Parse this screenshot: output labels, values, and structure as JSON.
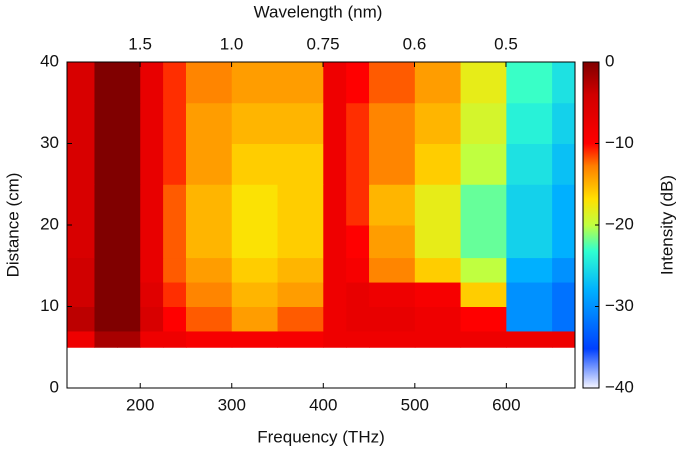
{
  "chart_data": {
    "type": "heatmap",
    "xlabel": "Frequency (THz)",
    "ylabel": "Distance (cm)",
    "x2label": "Wavelength (nm)",
    "colorbar_label": "Intensity (dB)",
    "colormap": "jet",
    "xlim": [
      120,
      675
    ],
    "ylim": [
      0,
      40
    ],
    "xticks": [
      200,
      300,
      400,
      500,
      600
    ],
    "yticks": [
      0,
      10,
      20,
      30,
      40
    ],
    "x2ticks": [
      1.5,
      {
        "value": 1.0,
        "label": "1.0"
      },
      0.75,
      0.6,
      0.5
    ],
    "clim": [
      -40,
      0
    ],
    "cticks": [
      {
        "value": 0,
        "label": "0"
      },
      {
        "value": -10,
        "label": "−10"
      },
      {
        "value": -20,
        "label": "−20"
      },
      {
        "value": -30,
        "label": "−30"
      },
      {
        "value": -40,
        "label": "−40"
      }
    ],
    "x_bins": [
      120,
      150,
      175,
      200,
      225,
      250,
      300,
      350,
      400,
      425,
      450,
      500,
      550,
      600,
      650,
      675
    ],
    "y_bins": [
      0,
      5,
      7,
      10,
      13,
      16,
      20,
      25,
      30,
      35,
      40
    ],
    "z": [
      [
        null,
        null,
        null,
        null,
        null,
        null,
        null,
        null,
        null,
        null,
        null,
        null,
        null,
        null,
        null
      ],
      [
        -8,
        -2,
        -2,
        -8,
        -8,
        -9,
        -9,
        -9,
        -8,
        -8,
        -8,
        -8,
        -8,
        -8,
        -8
      ],
      [
        -3,
        0,
        0,
        -5,
        -10,
        -12,
        -14,
        -12,
        -8,
        -7,
        -7,
        -8,
        -10,
        -30,
        -32
      ],
      [
        -4,
        0,
        0,
        -6,
        -11,
        -13,
        -15,
        -14,
        -8,
        -7,
        -8,
        -9,
        -16,
        -30,
        -32
      ],
      [
        -4,
        0,
        0,
        -7,
        -12,
        -14,
        -16,
        -15,
        -8,
        -9,
        -13,
        -16,
        -20,
        -28,
        -30
      ],
      [
        -5,
        0,
        0,
        -7,
        -12,
        -15,
        -17,
        -16,
        -8,
        -10,
        -14,
        -18,
        -22,
        -26,
        -28
      ],
      [
        -5,
        0,
        0,
        -7,
        -12,
        -15,
        -17,
        -16,
        -8,
        -11,
        -15,
        -18,
        -22,
        -26,
        -28
      ],
      [
        -5,
        0,
        0,
        -7,
        -11,
        -14,
        -16,
        -16,
        -8,
        -11,
        -13,
        -16,
        -20,
        -25,
        -27
      ],
      [
        -5,
        0,
        0,
        -7,
        -11,
        -14,
        -15,
        -15,
        -8,
        -11,
        -13,
        -15,
        -19,
        -24,
        -26
      ],
      [
        -5,
        0,
        0,
        -7,
        -11,
        -13,
        -14,
        -14,
        -8,
        -10,
        -12,
        -14,
        -18,
        -23,
        -25
      ]
    ]
  }
}
